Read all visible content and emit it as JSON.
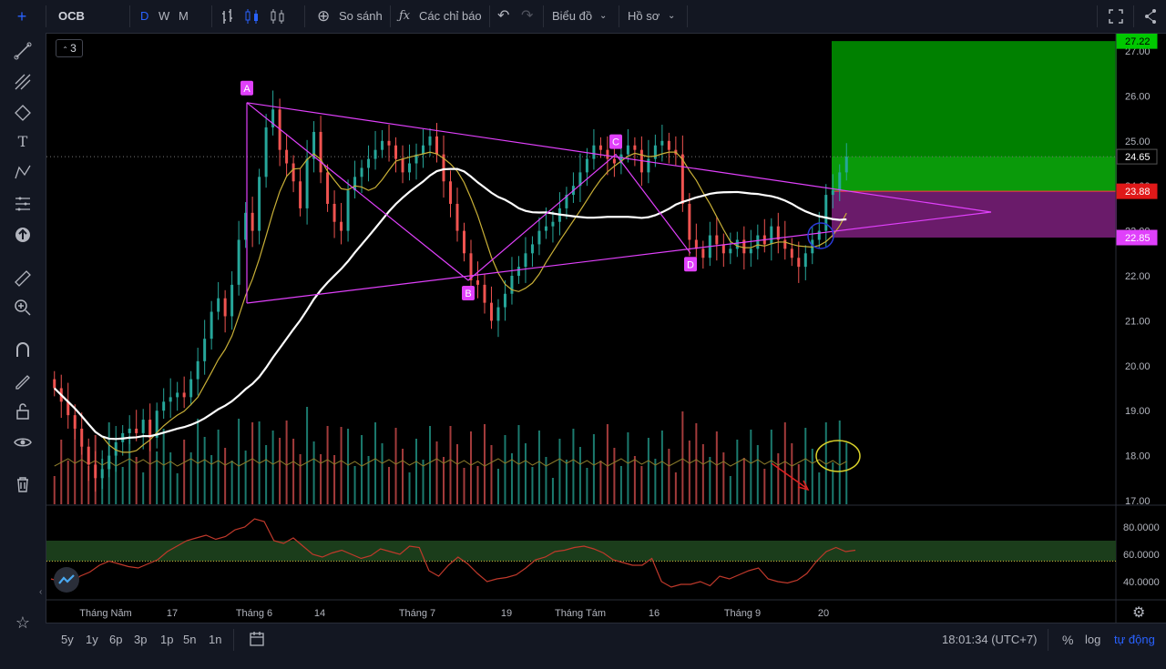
{
  "toolbar": {
    "symbol": "OCB",
    "intervals": [
      "D",
      "W",
      "M"
    ],
    "compare_label": "So sánh",
    "indicators_label": "Các chỉ báo",
    "chart_type_label": "Biểu đồ",
    "profile_label": "Hồ sơ"
  },
  "legend_badge": "3",
  "bottom": {
    "ranges": [
      "5y",
      "1y",
      "6p",
      "3p",
      "1p",
      "5n",
      "1n"
    ],
    "time": "18:01:34 (UTC+7)",
    "percent": "%",
    "log": "log",
    "auto": "tự động"
  },
  "price_axis": {
    "ticks": [
      "27.00",
      "26.00",
      "25.00",
      "24.00",
      "23.00",
      "22.00",
      "21.00",
      "20.00",
      "19.00",
      "18.00",
      "17.00"
    ],
    "badge_top": "27.22",
    "badge_last": "24.65",
    "badge_stop": "23.88",
    "badge_entry": "22.85"
  },
  "rsi_axis": {
    "ticks": [
      "80.0000",
      "60.0000",
      "40.0000"
    ]
  },
  "time_axis": {
    "labels": [
      "Tháng Năm",
      "17",
      "Tháng 6",
      "14",
      "Tháng 7",
      "19",
      "Tháng Tám",
      "16",
      "Tháng 9",
      "20"
    ]
  },
  "pattern_labels": [
    "A",
    "B",
    "C",
    "D"
  ],
  "colors": {
    "up": "#26a69a",
    "down": "#ef5350",
    "pattern": "#e040fb",
    "target": "#008000",
    "stop": "#6a1b6a",
    "ma_fast": "#c9b037",
    "ma_slow": "#ffffff"
  },
  "chart_data": {
    "type": "candlestick",
    "symbol": "OCB",
    "price_range": [
      16.8,
      27.5
    ],
    "rsi_range": [
      30,
      90
    ],
    "rsi_bands": [
      55,
      70
    ],
    "pattern_points": {
      "A": 25.85,
      "B": 21.9,
      "C": 24.7,
      "D": 22.5
    },
    "target_zone": [
      23.88,
      27.22
    ],
    "stop_zone": [
      22.85,
      23.88
    ],
    "last_price": 24.65,
    "closes": [
      19.5,
      19.2,
      18.9,
      18.6,
      18.2,
      17.8,
      17.5,
      17.7,
      18.0,
      18.3,
      18.5,
      18.6,
      18.5,
      18.8,
      18.4,
      19.0,
      19.2,
      19.3,
      19.4,
      19.3,
      19.7,
      20.1,
      20.6,
      21.2,
      21.5,
      21.1,
      21.8,
      22.8,
      23.4,
      23.0,
      24.2,
      25.3,
      25.7,
      24.8,
      24.5,
      24.1,
      23.5,
      24.6,
      25.2,
      24.3,
      23.6,
      23.2,
      23.0,
      23.9,
      24.2,
      24.4,
      24.6,
      24.8,
      25.0,
      24.9,
      24.6,
      24.3,
      24.5,
      24.7,
      24.9,
      25.1,
      24.7,
      24.1,
      23.6,
      23.0,
      22.5,
      21.9,
      21.8,
      21.4,
      21.0,
      21.3,
      21.6,
      22.0,
      22.2,
      22.5,
      22.7,
      23.0,
      23.1,
      23.2,
      23.5,
      23.8,
      24.0,
      24.3,
      24.6,
      24.9,
      24.8,
      24.6,
      24.5,
      24.7,
      24.9,
      24.8,
      24.3,
      24.6,
      24.9,
      25.0,
      24.8,
      24.7,
      23.6,
      22.8,
      22.6,
      22.4,
      22.9,
      22.7,
      22.5,
      22.6,
      22.8,
      22.5,
      22.6,
      22.9,
      22.7,
      23.1,
      22.8,
      22.6,
      22.4,
      22.2,
      22.5,
      22.8,
      23.0,
      23.8,
      23.9,
      24.3,
      24.65
    ],
    "rsi": [
      42,
      40,
      38,
      44,
      47,
      52,
      55,
      53,
      51,
      50,
      53,
      56,
      62,
      66,
      70,
      72,
      74,
      71,
      73,
      78,
      80,
      86,
      84,
      70,
      68,
      72,
      66,
      60,
      58,
      61,
      63,
      60,
      57,
      59,
      64,
      62,
      60,
      66,
      65,
      48,
      44,
      52,
      58,
      53,
      46,
      40,
      42,
      43,
      45,
      50,
      56,
      58,
      62,
      63,
      65,
      66,
      64,
      61,
      56,
      54,
      52,
      52,
      57,
      40,
      36,
      38,
      38,
      40,
      37,
      44,
      42,
      45,
      48,
      50,
      42,
      40,
      39,
      41,
      46,
      55,
      62,
      65,
      62,
      63
    ]
  }
}
